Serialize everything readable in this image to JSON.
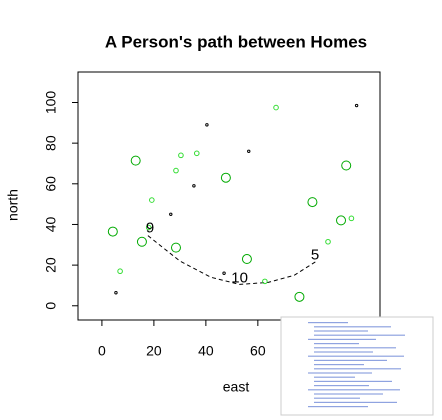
{
  "chart_data": {
    "type": "scatter",
    "title": "A Person's path between Homes",
    "x_label": "east",
    "y_label": "north",
    "xlim": [
      -9.2,
      107
    ],
    "ylim": [
      -7,
      115
    ],
    "xticks": [
      0,
      20,
      40,
      60
    ],
    "yticks": [
      0,
      20,
      40,
      60,
      80,
      100
    ],
    "series": [
      {
        "color": "#00aa00",
        "marker_radius": 4.5,
        "x": [
          13,
          4.2,
          15.4,
          28.5,
          47.7,
          55.8,
          81,
          94,
          92,
          76
        ],
        "values": [
          71.4,
          36.5,
          31.5,
          28.6,
          63,
          23,
          51,
          69,
          42,
          4.4
        ]
      },
      {
        "color": "#33dd33",
        "marker_radius": 2.3,
        "x": [
          7,
          19.2,
          28.5,
          30.4,
          36.5,
          67,
          62.7,
          87,
          96,
          18
        ],
        "values": [
          17,
          52,
          66.5,
          74,
          75,
          97.5,
          12,
          31.5,
          43,
          38.5
        ]
      },
      {
        "color": "#000000",
        "marker_radius": 1.2,
        "x": [
          5.4,
          26.5,
          35.4,
          40.4,
          56.5,
          98,
          47
        ],
        "values": [
          6.4,
          45,
          59,
          89,
          76,
          98.5,
          16
        ]
      }
    ],
    "path": {
      "x": [
        17.7,
        30,
        42,
        53,
        64,
        74,
        82.3
      ],
      "values": [
        34.5,
        22,
        14,
        10.5,
        11.5,
        15,
        21.7
      ]
    },
    "annotations": [
      {
        "text": "9",
        "x": 18.5,
        "y": 38
      },
      {
        "text": "10",
        "x": 53,
        "y": 13.3
      },
      {
        "text": "5",
        "x": 82,
        "y": 24.6
      }
    ]
  }
}
